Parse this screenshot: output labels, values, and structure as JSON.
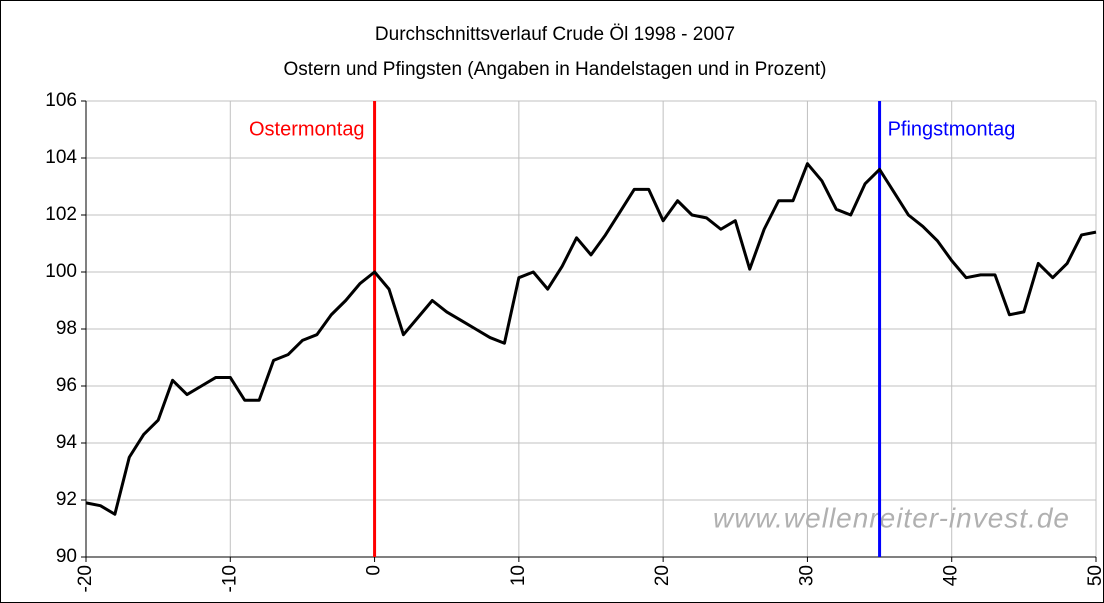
{
  "chart_data": {
    "type": "line",
    "title": "Durchschnittsverlauf Crude Öl 1998 - 2007",
    "subtitle": "Ostern und Pfingsten (Angaben in Handelstagen und in Prozent)",
    "x": [
      -20,
      -19,
      -18,
      -17,
      -16,
      -15,
      -14,
      -13,
      -12,
      -11,
      -10,
      -9,
      -8,
      -7,
      -6,
      -5,
      -4,
      -3,
      -2,
      -1,
      0,
      1,
      2,
      3,
      4,
      5,
      6,
      7,
      8,
      9,
      10,
      11,
      12,
      13,
      14,
      15,
      16,
      17,
      18,
      19,
      20,
      21,
      22,
      23,
      24,
      25,
      26,
      27,
      28,
      29,
      30,
      31,
      32,
      33,
      34,
      35,
      36,
      37,
      38,
      39,
      40,
      41,
      42,
      43,
      44,
      45,
      46,
      47,
      48,
      49,
      50
    ],
    "series": [
      {
        "color": "#000000",
        "values": [
          91.9,
          91.8,
          91.5,
          93.5,
          94.3,
          94.8,
          96.2,
          95.7,
          96.0,
          96.3,
          96.3,
          95.5,
          95.5,
          96.9,
          97.1,
          97.6,
          97.8,
          98.5,
          99.0,
          99.6,
          100.0,
          99.4,
          97.8,
          98.4,
          99.0,
          98.6,
          98.3,
          98.0,
          97.7,
          97.5,
          99.8,
          100.0,
          99.4,
          100.2,
          101.2,
          100.6,
          101.3,
          102.1,
          102.9,
          102.9,
          101.8,
          102.5,
          102.0,
          101.9,
          101.5,
          101.8,
          100.1,
          101.5,
          102.5,
          102.5,
          103.8,
          103.2,
          102.2,
          102.0,
          103.1,
          103.6,
          102.8,
          102.0,
          101.6,
          101.1,
          100.4,
          99.8,
          99.9,
          99.9,
          98.5,
          98.6,
          100.3,
          99.8,
          100.3,
          101.3,
          101.4
        ]
      }
    ],
    "xlim": [
      -20,
      50
    ],
    "xticks": [
      -20,
      -10,
      0,
      10,
      20,
      30,
      40,
      50
    ],
    "ylim": [
      90,
      106
    ],
    "yticks": [
      90,
      92,
      94,
      96,
      98,
      100,
      102,
      104,
      106
    ],
    "grid": true,
    "annotations": [
      {
        "label": "Ostermontag",
        "x": 0,
        "color": "#ff0000"
      },
      {
        "label": "Pfingstmontag",
        "x": 35,
        "color": "#0000ff"
      }
    ],
    "watermark": "www.wellenreiter-invest.de"
  }
}
